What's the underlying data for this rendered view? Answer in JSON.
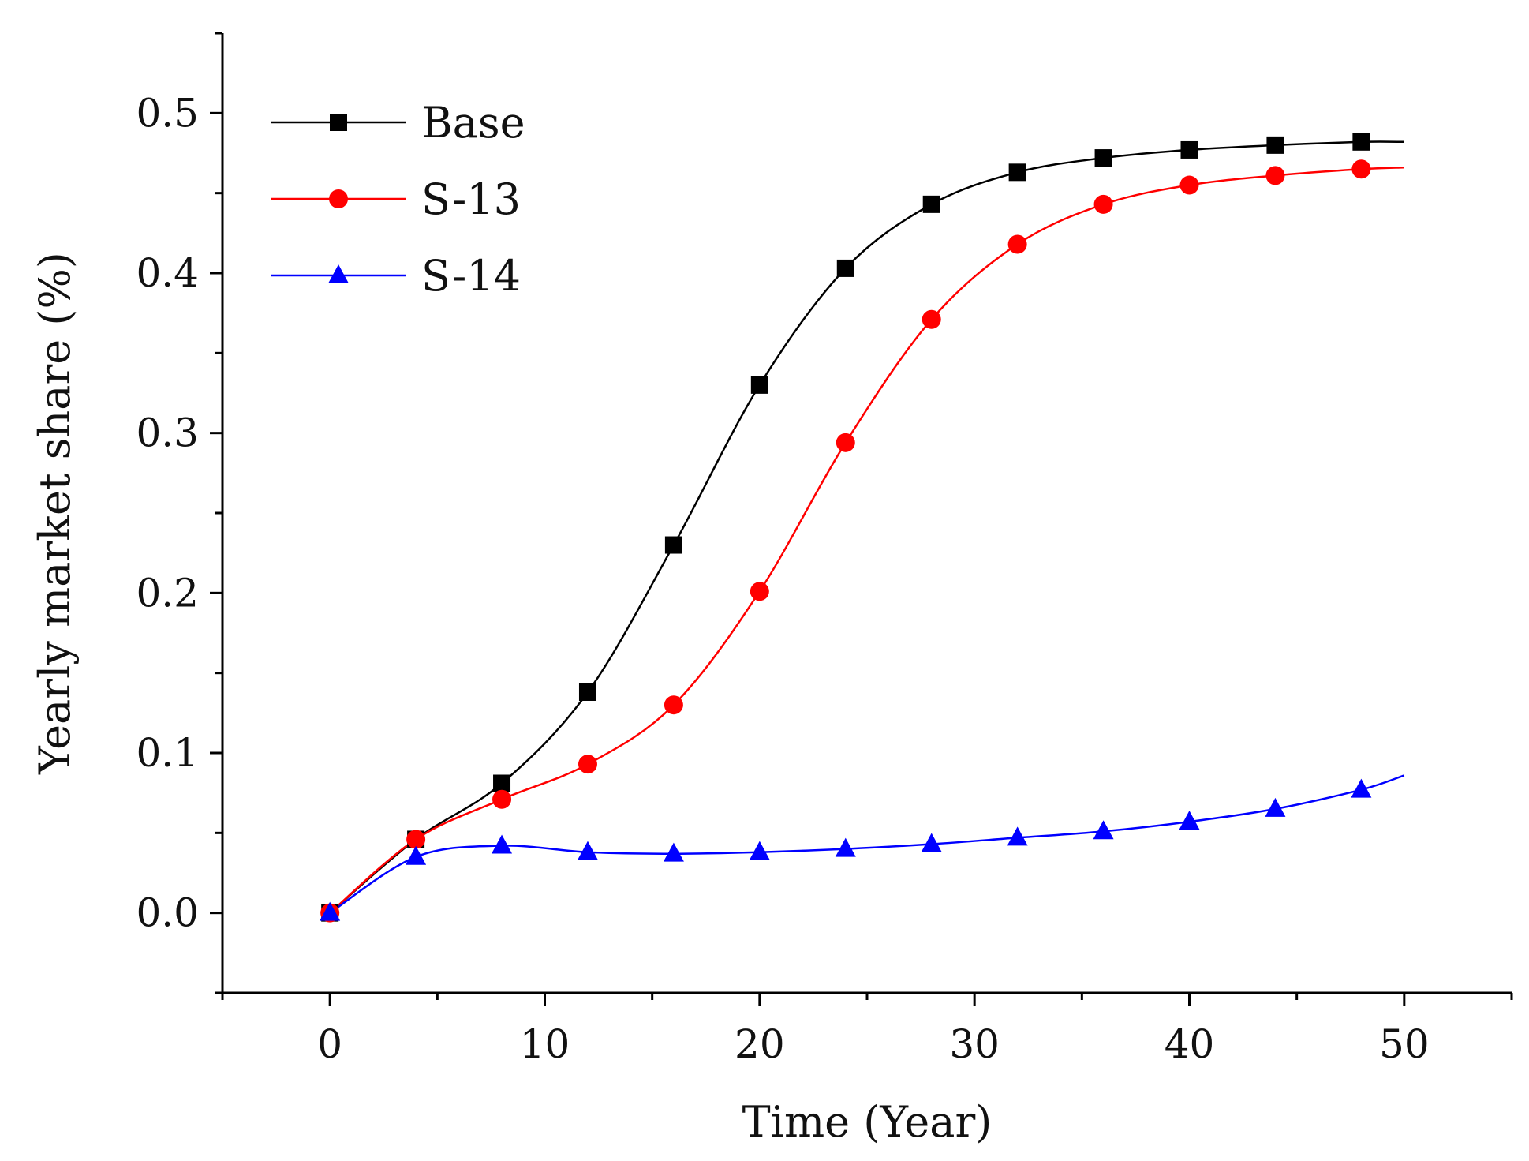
{
  "chart_data": {
    "type": "line",
    "title": "",
    "xlabel": "Time (Year)",
    "ylabel": "Yearly market share (%)",
    "xlim": [
      -5,
      55
    ],
    "ylim": [
      -0.05,
      0.55
    ],
    "xticks": [
      0,
      10,
      20,
      30,
      40,
      50
    ],
    "xtick_labels": [
      "0",
      "10",
      "20",
      "30",
      "40",
      "50"
    ],
    "yticks": [
      0.0,
      0.1,
      0.2,
      0.3,
      0.4,
      0.5
    ],
    "ytick_labels": [
      "0.0",
      "0.1",
      "0.2",
      "0.3",
      "0.4",
      "0.5"
    ],
    "grid": false,
    "legend_position": "top-left",
    "series": [
      {
        "name": "Base",
        "color": "#000000",
        "marker": "square",
        "x": [
          0,
          4,
          8,
          12,
          16,
          20,
          24,
          28,
          32,
          36,
          40,
          44,
          48
        ],
        "y": [
          0.0,
          0.046,
          0.081,
          0.138,
          0.23,
          0.33,
          0.403,
          0.443,
          0.463,
          0.472,
          0.477,
          0.48,
          0.482
        ],
        "curve_x": [
          0,
          4,
          8,
          12,
          16,
          20,
          24,
          28,
          32,
          36,
          40,
          44,
          48,
          50
        ],
        "curve_y": [
          0.0,
          0.046,
          0.081,
          0.138,
          0.23,
          0.33,
          0.403,
          0.443,
          0.463,
          0.472,
          0.477,
          0.48,
          0.482,
          0.482
        ]
      },
      {
        "name": "S-13",
        "color": "#ff0000",
        "marker": "circle",
        "x": [
          0,
          4,
          8,
          12,
          16,
          20,
          24,
          28,
          32,
          36,
          40,
          44,
          48
        ],
        "y": [
          0.0,
          0.046,
          0.071,
          0.093,
          0.13,
          0.201,
          0.294,
          0.371,
          0.418,
          0.443,
          0.455,
          0.461,
          0.465
        ],
        "curve_x": [
          0,
          4,
          8,
          12,
          16,
          20,
          24,
          28,
          32,
          36,
          40,
          44,
          48,
          50
        ],
        "curve_y": [
          0.0,
          0.046,
          0.071,
          0.093,
          0.13,
          0.201,
          0.294,
          0.371,
          0.418,
          0.443,
          0.455,
          0.461,
          0.465,
          0.466
        ]
      },
      {
        "name": "S-14",
        "color": "#0000ff",
        "marker": "triangle",
        "x": [
          0,
          4,
          8,
          12,
          16,
          20,
          24,
          28,
          32,
          36,
          40,
          44,
          48
        ],
        "y": [
          0.0,
          0.035,
          0.042,
          0.038,
          0.037,
          0.038,
          0.04,
          0.043,
          0.047,
          0.051,
          0.057,
          0.065,
          0.077
        ],
        "curve_x": [
          0,
          4,
          8,
          12,
          16,
          20,
          24,
          28,
          32,
          36,
          40,
          44,
          48,
          50
        ],
        "curve_y": [
          0.0,
          0.035,
          0.042,
          0.038,
          0.037,
          0.038,
          0.04,
          0.043,
          0.047,
          0.051,
          0.057,
          0.065,
          0.077,
          0.086
        ]
      }
    ]
  }
}
